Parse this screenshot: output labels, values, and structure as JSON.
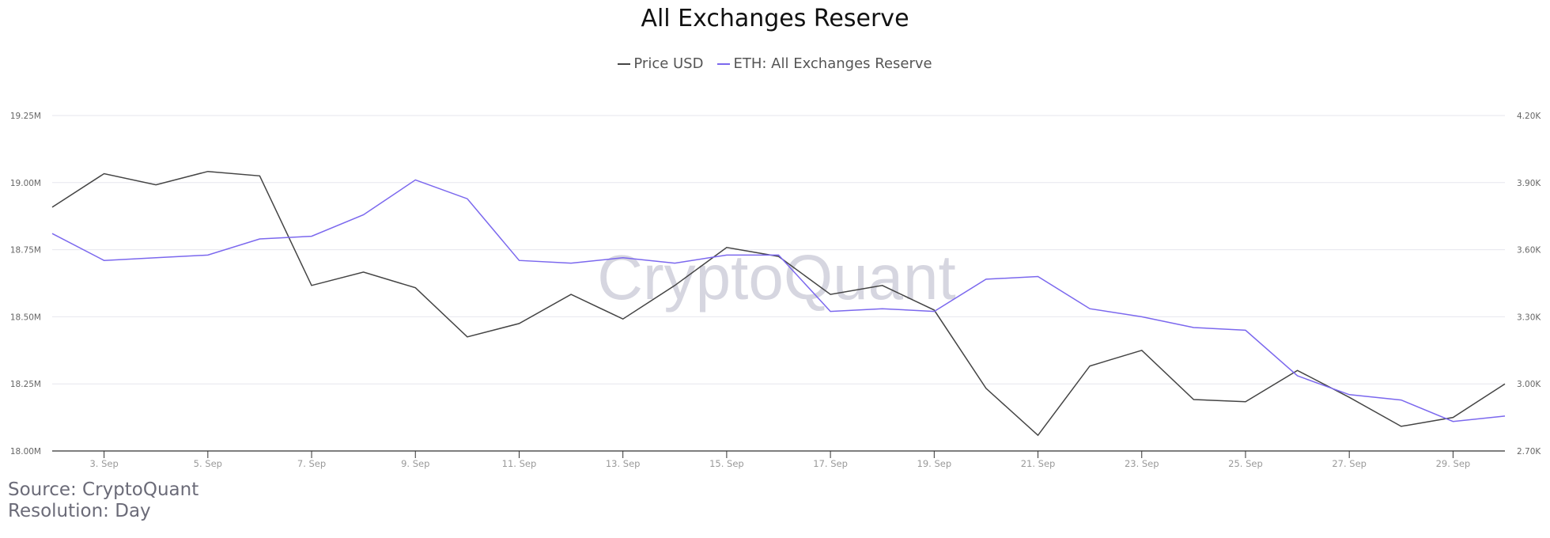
{
  "title": "All Exchanges Reserve",
  "legend": [
    {
      "label": "Price USD",
      "color": "#444444"
    },
    {
      "label": "ETH: All Exchanges Reserve",
      "color": "#7b68ee"
    }
  ],
  "watermark": "CryptoQuant",
  "footer": {
    "source": "Source: CryptoQuant",
    "resolution": "Resolution: Day"
  },
  "chart_data": {
    "type": "line",
    "title": "All Exchanges Reserve",
    "xlabel": "",
    "ylabel_left": "ETH: All Exchanges Reserve",
    "ylabel_right": "Price USD",
    "x": [
      "2. Sep",
      "3. Sep",
      "4. Sep",
      "5. Sep",
      "6. Sep",
      "7. Sep",
      "8. Sep",
      "9. Sep",
      "10. Sep",
      "11. Sep",
      "12. Sep",
      "13. Sep",
      "14. Sep",
      "15. Sep",
      "16. Sep",
      "17. Sep",
      "18. Sep",
      "19. Sep",
      "20. Sep",
      "21. Sep",
      "22. Sep",
      "23. Sep",
      "24. Sep",
      "25. Sep",
      "26. Sep",
      "27. Sep",
      "28. Sep",
      "29. Sep",
      "30. Sep"
    ],
    "x_tick_labels": [
      "3. Sep",
      "5. Sep",
      "7. Sep",
      "9. Sep",
      "11. Sep",
      "13. Sep",
      "15. Sep",
      "17. Sep",
      "19. Sep",
      "21. Sep",
      "23. Sep",
      "25. Sep",
      "27. Sep",
      "29. Sep"
    ],
    "left_axis": {
      "ticks": [
        "18.00M",
        "18.25M",
        "18.50M",
        "18.75M",
        "19.00M",
        "19.25M"
      ],
      "range": [
        18.0,
        19.25
      ],
      "unit": "M"
    },
    "right_axis": {
      "ticks": [
        "2.70K",
        "3.00K",
        "3.30K",
        "3.60K",
        "3.90K",
        "4.20K"
      ],
      "range": [
        2.7,
        4.2
      ],
      "unit": "K"
    },
    "grid": true,
    "legend_position": "top",
    "series": [
      {
        "name": "Price USD",
        "axis": "right",
        "color": "#444444",
        "values": [
          3.79,
          3.94,
          3.89,
          3.95,
          3.93,
          3.44,
          3.5,
          3.43,
          3.21,
          3.27,
          3.4,
          3.29,
          3.44,
          3.61,
          3.57,
          3.4,
          3.44,
          3.33,
          2.98,
          2.77,
          3.08,
          3.15,
          2.93,
          2.92,
          3.06,
          2.94,
          2.81,
          2.85,
          3.0
        ]
      },
      {
        "name": "ETH: All Exchanges Reserve",
        "axis": "left",
        "color": "#7b68ee",
        "values": [
          18.81,
          18.71,
          18.72,
          18.73,
          18.79,
          18.8,
          18.88,
          19.01,
          18.94,
          18.71,
          18.7,
          18.72,
          18.7,
          18.73,
          18.73,
          18.52,
          18.53,
          18.52,
          18.64,
          18.65,
          18.53,
          18.5,
          18.46,
          18.45,
          18.28,
          18.21,
          18.19,
          18.11,
          18.13
        ]
      }
    ]
  }
}
